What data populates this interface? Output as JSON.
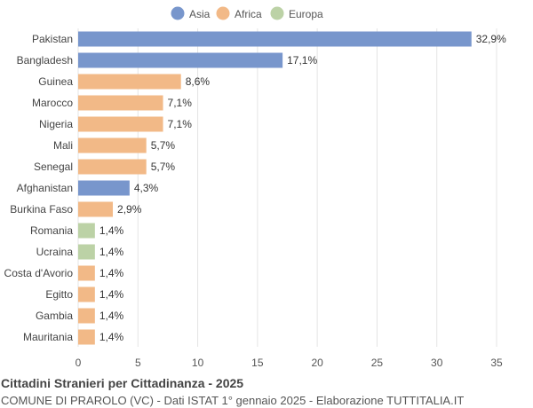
{
  "chart_data": {
    "type": "bar",
    "orientation": "horizontal",
    "title": "Cittadini Stranieri per Cittadinanza - 2025",
    "subtitle": "COMUNE DI PRAROLO (VC) - Dati ISTAT 1° gennaio 2025 - Elaborazione TUTTITALIA.IT",
    "xlim": [
      0,
      35
    ],
    "xticks": [
      0,
      5,
      10,
      15,
      20,
      25,
      30,
      35
    ],
    "grid": true,
    "legend_placement": "top",
    "legend": [
      {
        "name": "Asia",
        "color": "#7896cc"
      },
      {
        "name": "Africa",
        "color": "#f2b987"
      },
      {
        "name": "Europa",
        "color": "#bcd2a6"
      }
    ],
    "categories": [
      "Pakistan",
      "Bangladesh",
      "Guinea",
      "Marocco",
      "Nigeria",
      "Mali",
      "Senegal",
      "Afghanistan",
      "Burkina Faso",
      "Romania",
      "Ucraina",
      "Costa d'Avorio",
      "Egitto",
      "Gambia",
      "Mauritania"
    ],
    "values": [
      32.9,
      17.1,
      8.6,
      7.1,
      7.1,
      5.7,
      5.7,
      4.3,
      2.9,
      1.4,
      1.4,
      1.4,
      1.4,
      1.4,
      1.4
    ],
    "labels": [
      "32,9%",
      "17,1%",
      "8,6%",
      "7,1%",
      "7,1%",
      "5,7%",
      "5,7%",
      "4,3%",
      "2,9%",
      "1,4%",
      "1,4%",
      "1,4%",
      "1,4%",
      "1,4%",
      "1,4%"
    ],
    "groups": [
      "Asia",
      "Asia",
      "Africa",
      "Africa",
      "Africa",
      "Africa",
      "Africa",
      "Asia",
      "Africa",
      "Europa",
      "Europa",
      "Africa",
      "Africa",
      "Africa",
      "Africa"
    ]
  }
}
